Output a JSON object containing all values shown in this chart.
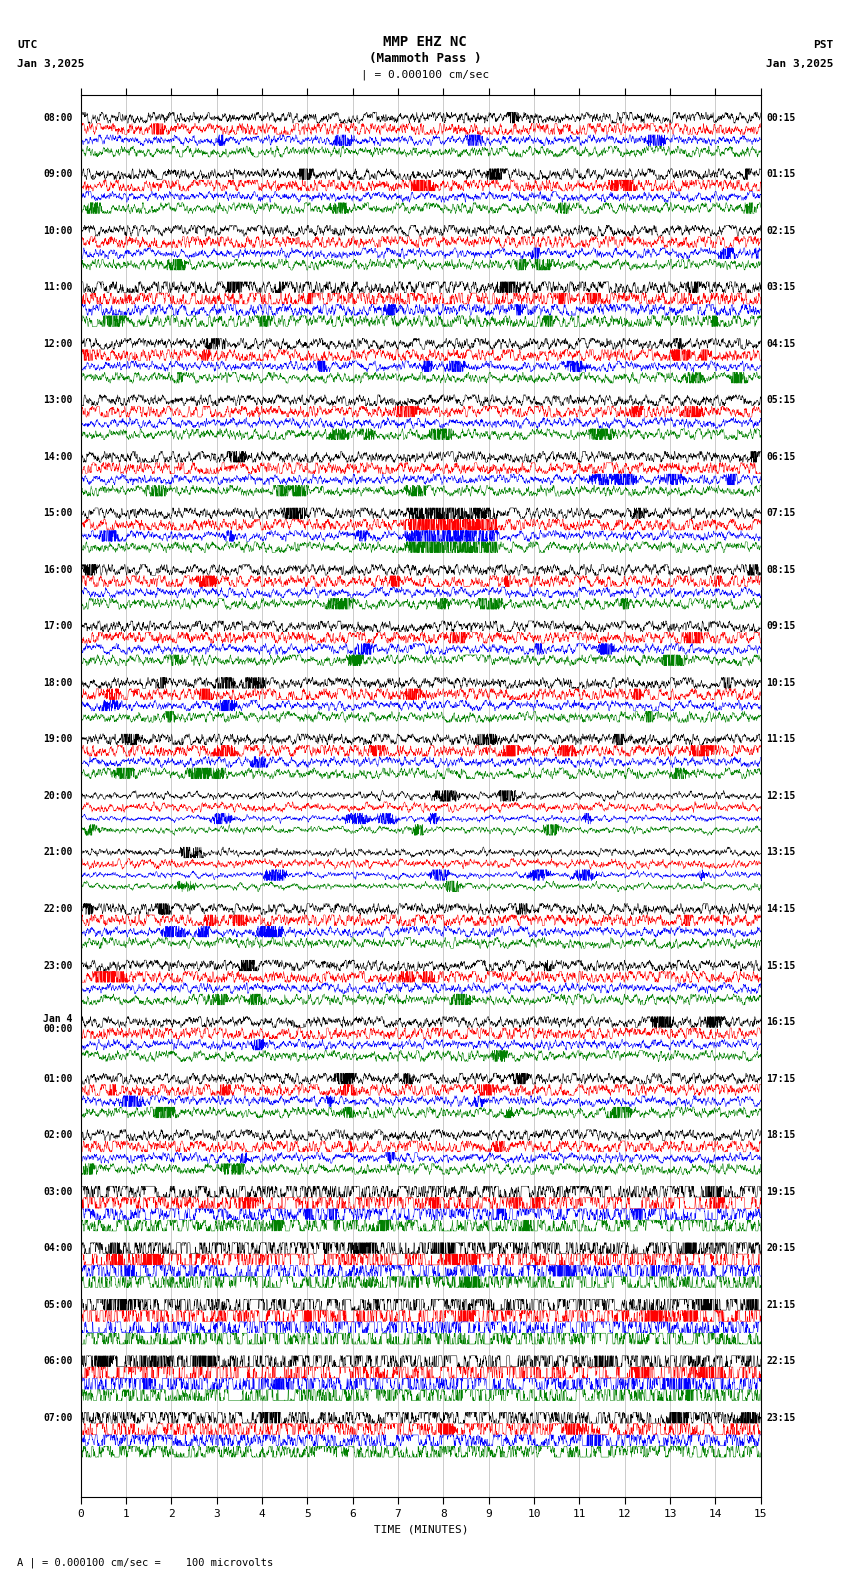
{
  "title_line1": "MMP EHZ NC",
  "title_line2": "(Mammoth Pass )",
  "scale_label": "| = 0.000100 cm/sec",
  "bottom_label": "A | = 0.000100 cm/sec =    100 microvolts",
  "xlabel": "TIME (MINUTES)",
  "utc_label": "UTC",
  "pst_label": "PST",
  "date_left": "Jan 3,2025",
  "date_right": "Jan 3,2025",
  "background_color": "#ffffff",
  "trace_colors": [
    "#000000",
    "#ff0000",
    "#0000ff",
    "#008000"
  ],
  "left_times": [
    "08:00",
    "09:00",
    "10:00",
    "11:00",
    "12:00",
    "13:00",
    "14:00",
    "15:00",
    "16:00",
    "17:00",
    "18:00",
    "19:00",
    "20:00",
    "21:00",
    "22:00",
    "23:00",
    "Jan 4\n00:00",
    "01:00",
    "02:00",
    "03:00",
    "04:00",
    "05:00",
    "06:00",
    "07:00"
  ],
  "right_times": [
    "00:15",
    "01:15",
    "02:15",
    "03:15",
    "04:15",
    "05:15",
    "06:15",
    "07:15",
    "08:15",
    "09:15",
    "10:15",
    "11:15",
    "12:15",
    "13:15",
    "14:15",
    "15:15",
    "16:15",
    "17:15",
    "18:15",
    "19:15",
    "20:15",
    "21:15",
    "22:15",
    "23:15"
  ],
  "n_rows": 24,
  "n_traces_per_row": 4,
  "xmin": 0,
  "xmax": 15,
  "noise_seed": 12345,
  "earthquake_row": 7,
  "earthquake_minute": 7.2,
  "title_fontsize": 10,
  "label_fontsize": 8,
  "tick_fontsize": 8,
  "figwidth": 8.5,
  "figheight": 15.84,
  "row_amplitude_scale": [
    1.0,
    1.0,
    1.0,
    1.5,
    1.0,
    1.0,
    1.0,
    1.0,
    1.0,
    1.0,
    1.0,
    1.0,
    0.6,
    0.6,
    1.0,
    1.0,
    1.0,
    1.0,
    1.0,
    2.5,
    3.5,
    4.0,
    4.5,
    2.5
  ],
  "trace_amplitude_scale": [
    1.0,
    1.2,
    0.8,
    0.9
  ]
}
